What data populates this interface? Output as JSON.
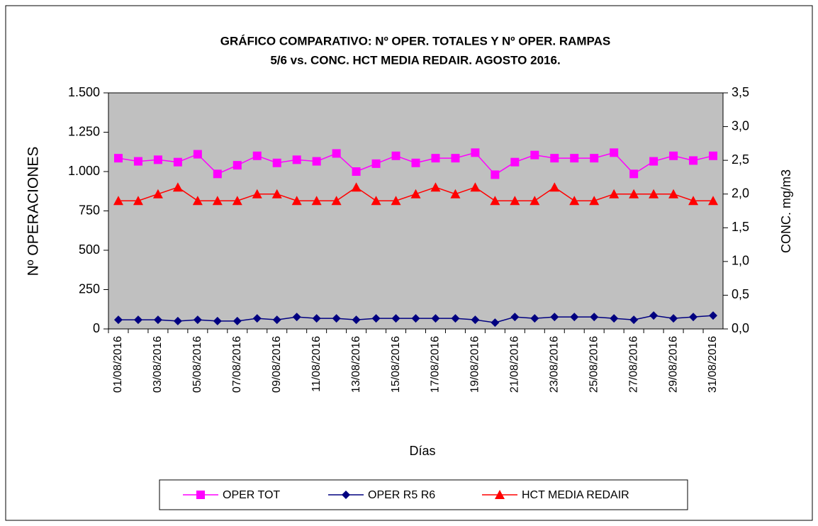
{
  "chart_data": {
    "type": "line",
    "title": [
      "GRÁFICO COMPARATIVO:  Nº OPER. TOTALES Y Nº OPER. RAMPAS",
      "5/6 vs. CONC.  HCT  MEDIA REDAIR.  AGOSTO  2016."
    ],
    "y_label": "Nº OPERACIONES",
    "y2_label": "CONC.  mg/m3",
    "x_label": "Días",
    "categories": [
      "01/08/2016",
      null,
      "03/08/2016",
      null,
      "05/08/2016",
      null,
      "07/08/2016",
      null,
      "09/08/2016",
      null,
      "11/08/2016",
      null,
      "13/08/2016",
      null,
      "15/08/2016",
      null,
      "17/08/2016",
      null,
      "19/08/2016",
      null,
      "21/08/2016",
      null,
      "23/08/2016",
      null,
      "25/08/2016",
      null,
      "27/08/2016",
      null,
      "29/08/2016",
      null,
      "31/08/2016"
    ],
    "ylim": [
      0,
      1500
    ],
    "yticks": [
      0,
      250,
      500,
      750,
      {
        "value": 1000,
        "label": "1.000"
      },
      {
        "value": 1250,
        "label": "1.250"
      },
      {
        "value": 1500,
        "label": "1.500"
      }
    ],
    "y2lim": [
      0,
      3.5
    ],
    "y2ticks": [
      {
        "value": 0,
        "label": "0,0"
      },
      {
        "value": 0.5,
        "label": "0,5"
      },
      {
        "value": 1,
        "label": "1,0"
      },
      {
        "value": 1.5,
        "label": "1,5"
      },
      {
        "value": 2,
        "label": "2,0"
      },
      {
        "value": 2.5,
        "label": "2,5"
      },
      {
        "value": 3,
        "label": "3,0"
      },
      {
        "value": 3.5,
        "label": "3,5"
      }
    ],
    "plot_background": "#c0c0c0",
    "series": [
      {
        "name": "OPER TOT",
        "color": "#ff00ff",
        "marker": "square",
        "values": [
          1085,
          1065,
          1075,
          1060,
          1110,
          985,
          1040,
          1100,
          1055,
          1075,
          1065,
          1115,
          1000,
          1050,
          1100,
          1055,
          1085,
          1085,
          1120,
          980,
          1060,
          1105,
          1085,
          1085,
          1085,
          1120,
          985,
          1065,
          1100,
          1070,
          1100
        ]
      },
      {
        "name": "OPER R5 R6",
        "color": "#000080",
        "marker": "diamond",
        "values": [
          58,
          58,
          58,
          50,
          58,
          50,
          50,
          67,
          58,
          76,
          67,
          67,
          58,
          67,
          67,
          67,
          67,
          67,
          58,
          40,
          76,
          67,
          76,
          76,
          76,
          67,
          58,
          85,
          67,
          76,
          85
        ]
      },
      {
        "name": "HCT MEDIA  REDAIR",
        "color": "#ff0000",
        "marker": "triangle",
        "axis": "y2",
        "values": [
          1.9,
          1.9,
          2.0,
          2.1,
          1.9,
          1.9,
          1.9,
          2.0,
          2.0,
          1.9,
          1.9,
          1.9,
          2.1,
          1.9,
          1.9,
          2.0,
          2.1,
          2.0,
          2.1,
          1.9,
          1.9,
          1.9,
          2.1,
          1.9,
          1.9,
          2.0,
          2.0,
          2.0,
          2.0,
          1.9,
          1.9
        ]
      }
    ]
  }
}
